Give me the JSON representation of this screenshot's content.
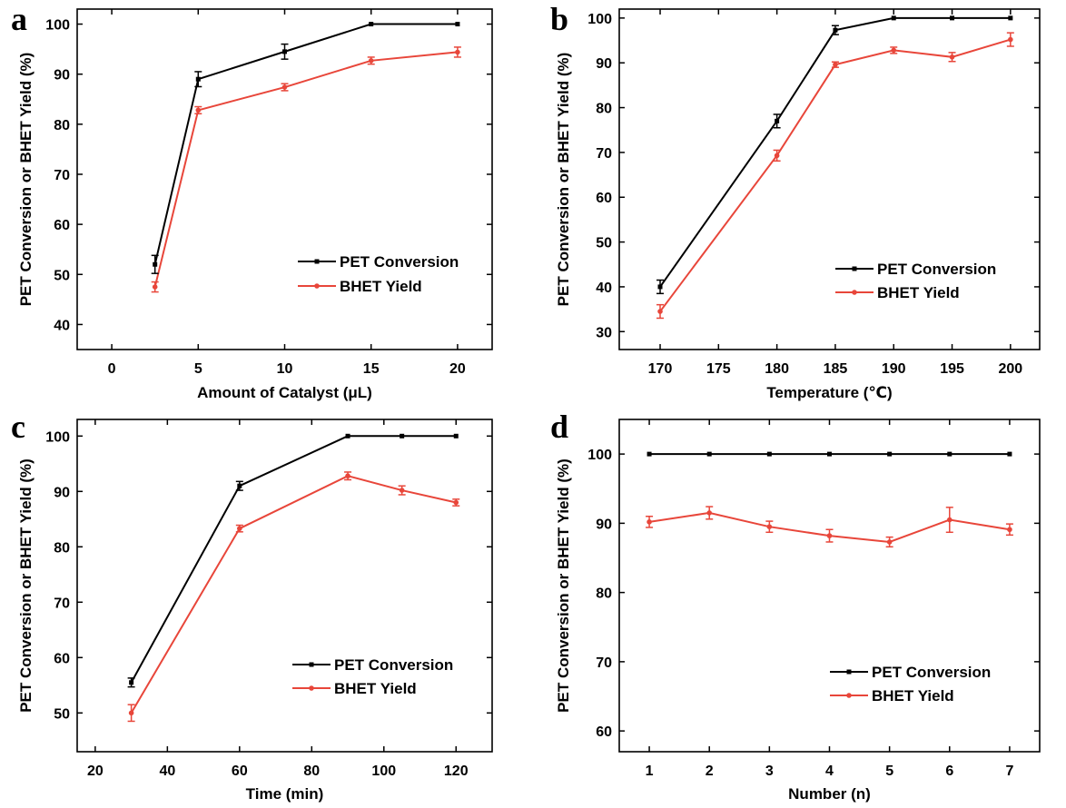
{
  "colors": {
    "pet": "#000000",
    "bhet": "#e8463a",
    "axis": "#000000"
  },
  "chart_data": [
    {
      "panel": "a",
      "type": "line",
      "xlabel": "Amount of Catalyst (μL)",
      "ylabel": "PET Conversion or BHET Yield (%)",
      "xlim": [
        -2,
        22
      ],
      "ylim": [
        35,
        103
      ],
      "xticks": [
        0,
        5,
        10,
        15,
        20
      ],
      "yticks": [
        40,
        50,
        60,
        70,
        80,
        90,
        100
      ],
      "grid": false,
      "legend_position": "center-right",
      "series": [
        {
          "name": "PET Conversion",
          "x": [
            2.5,
            5,
            10,
            15,
            20
          ],
          "y": [
            52,
            89,
            94.5,
            100,
            100
          ],
          "err": [
            1.8,
            1.5,
            1.5,
            0,
            0
          ]
        },
        {
          "name": "BHET Yield",
          "x": [
            2.5,
            5,
            10,
            15,
            20
          ],
          "y": [
            47.5,
            82.8,
            87.4,
            92.7,
            94.4
          ],
          "err": [
            1,
            0.7,
            0.7,
            0.7,
            1
          ]
        }
      ]
    },
    {
      "panel": "b",
      "type": "line",
      "xlabel": "Temperature (℃)",
      "ylabel": "PET Conversion or BHET Yield (%)",
      "xlim": [
        166.5,
        202.5
      ],
      "ylim": [
        26,
        102
      ],
      "xticks": [
        170,
        175,
        180,
        185,
        190,
        195,
        200
      ],
      "yticks": [
        30,
        40,
        50,
        60,
        70,
        80,
        90,
        100
      ],
      "grid": false,
      "legend_position": "center-right",
      "series": [
        {
          "name": "PET Conversion",
          "x": [
            170,
            180,
            185,
            190,
            195,
            200
          ],
          "y": [
            40,
            77,
            97.3,
            100,
            100,
            100
          ],
          "err": [
            1.5,
            1.5,
            1,
            0,
            0,
            0
          ]
        },
        {
          "name": "BHET Yield",
          "x": [
            170,
            180,
            185,
            190,
            195,
            200
          ],
          "y": [
            34.5,
            69.3,
            89.6,
            92.8,
            91.3,
            95.2
          ],
          "err": [
            1.5,
            1.2,
            0.6,
            0.7,
            1,
            1.5
          ]
        }
      ]
    },
    {
      "panel": "c",
      "type": "line",
      "xlabel": "Time (min)",
      "ylabel": "PET Conversion or BHET Yield (%)",
      "xlim": [
        15,
        130
      ],
      "ylim": [
        43,
        103
      ],
      "xticks": [
        20,
        40,
        60,
        80,
        100,
        120
      ],
      "yticks": [
        50,
        60,
        70,
        80,
        90,
        100
      ],
      "grid": false,
      "legend_position": "center-right",
      "series": [
        {
          "name": "PET Conversion",
          "x": [
            30,
            60,
            90,
            105,
            120
          ],
          "y": [
            55.5,
            91,
            100,
            100,
            100
          ],
          "err": [
            0.8,
            0.8,
            0,
            0,
            0
          ]
        },
        {
          "name": "BHET Yield",
          "x": [
            30,
            60,
            90,
            105,
            120
          ],
          "y": [
            50,
            83.3,
            92.8,
            90.2,
            88
          ],
          "err": [
            1.5,
            0.6,
            0.7,
            0.8,
            0.6
          ]
        }
      ]
    },
    {
      "panel": "d",
      "type": "line",
      "xlabel": "Number (n)",
      "ylabel": "PET Conversion or BHET Yield (%)",
      "xlim": [
        0.5,
        7.5
      ],
      "ylim": [
        57,
        105
      ],
      "xticks": [
        1,
        2,
        3,
        4,
        5,
        6,
        7
      ],
      "yticks": [
        60,
        70,
        80,
        90,
        100
      ],
      "grid": false,
      "legend_position": "center-right",
      "series": [
        {
          "name": "PET Conversion",
          "x": [
            1,
            2,
            3,
            4,
            5,
            6,
            7
          ],
          "y": [
            100,
            100,
            100,
            100,
            100,
            100,
            100
          ],
          "err": [
            0,
            0,
            0,
            0,
            0,
            0,
            0
          ]
        },
        {
          "name": "BHET Yield",
          "x": [
            1,
            2,
            3,
            4,
            5,
            6,
            7
          ],
          "y": [
            90.2,
            91.5,
            89.5,
            88.2,
            87.3,
            90.5,
            89.1
          ],
          "err": [
            0.8,
            0.9,
            0.8,
            0.9,
            0.7,
            1.8,
            0.8
          ]
        }
      ]
    }
  ]
}
